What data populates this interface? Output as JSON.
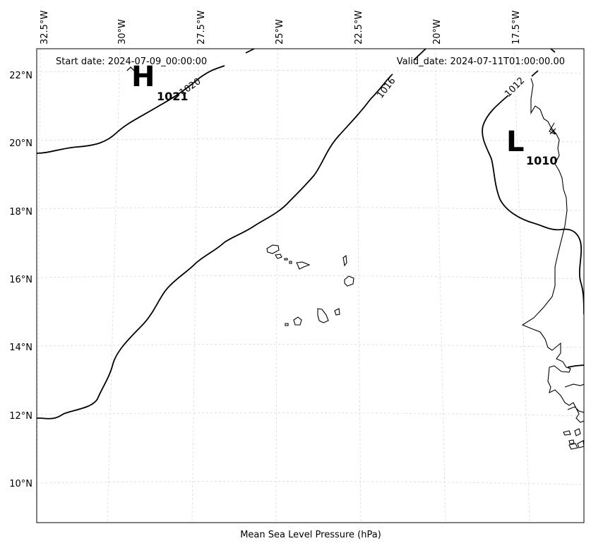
{
  "header": {
    "start_date": "Start date: 2024-07-09_00:00:00",
    "valid_date": "Valid_date: 2024-07-11T01:00:00.00"
  },
  "caption": "Mean Sea Level Pressure (hPa)",
  "axes": {
    "lon_ticks": [
      "32.5°W",
      "30°W",
      "27.5°W",
      "25°W",
      "22.5°W",
      "20°W",
      "17.5°W"
    ],
    "lat_ticks": [
      "22°N",
      "20°N",
      "18°N",
      "16°N",
      "14°N",
      "12°N",
      "10°N"
    ]
  },
  "contour_labels": [
    "1020",
    "1016",
    "1012"
  ],
  "pressure_centers": {
    "high": {
      "letter": "H",
      "value": "1021"
    },
    "low": {
      "letter": "L",
      "value": "1010"
    }
  }
}
